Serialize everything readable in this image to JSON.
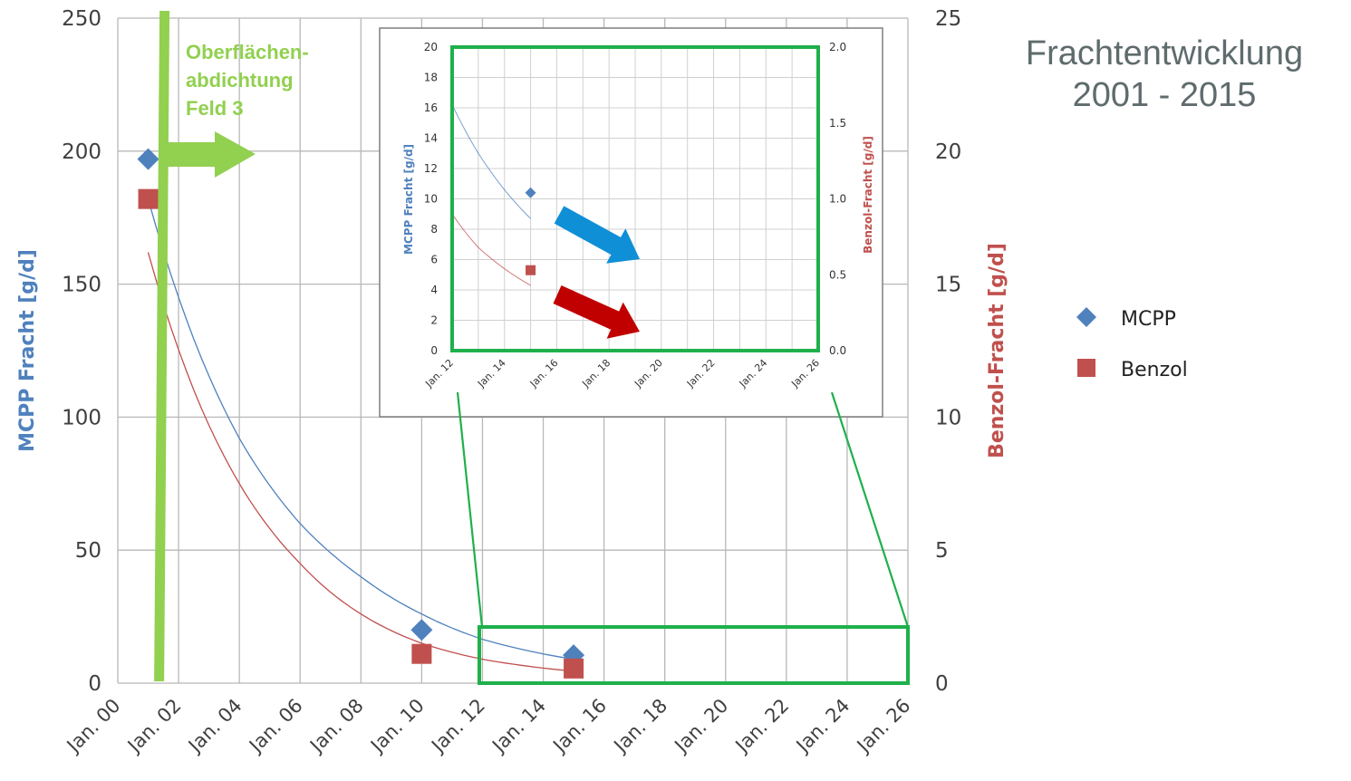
{
  "title": {
    "line1": "Frachtentwicklung",
    "line2": "2001 - 2015"
  },
  "annotation": {
    "line1": "Oberflächen-",
    "line2": "abdichtung",
    "line3": "Feld 3"
  },
  "colors": {
    "mcpp": "#4f81bd",
    "benzol": "#c0504d",
    "highlight": "#1fb04b",
    "annotation": "#92d050",
    "arrow_blue": "#0f8fd6",
    "arrow_red": "#c00000",
    "grid": "#b8b8b8",
    "axis_text": "#404040"
  },
  "chart_data": [
    {
      "type": "scatter",
      "xlabel": "",
      "ylabel": "MCPP Fracht [g/d]",
      "y2label": "Benzol-Fracht [g/d]",
      "x_ticks": [
        "Jan. 00",
        "Jan. 02",
        "Jan. 04",
        "Jan. 06",
        "Jan. 08",
        "Jan. 10",
        "Jan. 12",
        "Jan. 14",
        "Jan. 16",
        "Jan. 18",
        "Jan. 20",
        "Jan. 22",
        "Jan. 24",
        "Jan. 26"
      ],
      "xlim": [
        2000,
        2026
      ],
      "ylim": [
        0,
        250
      ],
      "y_ticks": [
        "0",
        "50",
        "100",
        "150",
        "200",
        "250"
      ],
      "y2lim": [
        0,
        25
      ],
      "y2_ticks": [
        "0",
        "5",
        "10",
        "15",
        "20",
        "25"
      ],
      "legend_position": "right",
      "grid": true,
      "series": [
        {
          "name": "MCPP",
          "axis": "left",
          "marker": "diamond",
          "points": [
            [
              2001.0,
              197
            ],
            [
              2010.0,
              20
            ],
            [
              2015.0,
              10.5
            ]
          ]
        },
        {
          "name": "Benzol",
          "axis": "right",
          "marker": "square",
          "points": [
            [
              2001.0,
              18.2
            ],
            [
              2010.0,
              1.1
            ],
            [
              2015.0,
              0.55
            ]
          ]
        }
      ],
      "trendlines": [
        {
          "series": "MCPP",
          "type": "exponential",
          "axis": "left",
          "from": 2001,
          "to": 2015,
          "points": [
            [
              2001,
              182
            ],
            [
              2004,
              92
            ],
            [
              2006,
              60
            ],
            [
              2008,
              40
            ],
            [
              2010,
              26
            ],
            [
              2012,
              16.5
            ],
            [
              2015,
              9
            ]
          ]
        },
        {
          "series": "Benzol",
          "axis": "right",
          "type": "exponential",
          "from": 2001,
          "to": 2015,
          "points": [
            [
              2001,
              16.2
            ],
            [
              2004,
              7.5
            ],
            [
              2006,
              4.5
            ],
            [
              2008,
              2.6
            ],
            [
              2010,
              1.5
            ],
            [
              2012,
              0.9
            ],
            [
              2015,
              0.45
            ]
          ]
        }
      ],
      "annotation_event_x": 2001.3,
      "highlight_region": {
        "xlim": [
          2012,
          2026
        ],
        "ylim": [
          0,
          21
        ]
      }
    },
    {
      "type": "scatter",
      "inset": true,
      "xlabel": "",
      "ylabel": "MCPP Fracht [g/d]",
      "y2label": "Benzol-Fracht [g/d]",
      "x_ticks": [
        "Jan. 12",
        "Jan. 14",
        "Jan. 16",
        "Jan. 18",
        "Jan. 20",
        "Jan. 22",
        "Jan. 24",
        "Jan. 26"
      ],
      "xlim": [
        2012,
        2026
      ],
      "ylim": [
        0,
        20
      ],
      "y_ticks": [
        "0",
        "2",
        "4",
        "6",
        "8",
        "10",
        "12",
        "14",
        "16",
        "18",
        "20"
      ],
      "y2lim": [
        0,
        2.0
      ],
      "y2_ticks": [
        "0.0",
        "0.5",
        "1.0",
        "1.5",
        "2.0"
      ],
      "grid": true,
      "series": [
        {
          "name": "MCPP",
          "axis": "left",
          "marker": "diamond",
          "points": [
            [
              2015.0,
              10.4
            ]
          ]
        },
        {
          "name": "Benzol",
          "axis": "right",
          "marker": "square",
          "points": [
            [
              2015.0,
              0.53
            ]
          ]
        }
      ],
      "trendlines": [
        {
          "series": "MCPP",
          "axis": "left",
          "type": "exponential",
          "points": [
            [
              2012,
              16.2
            ],
            [
              2013,
              13.0
            ],
            [
              2014,
              10.6
            ],
            [
              2015,
              8.7
            ]
          ]
        },
        {
          "series": "Benzol",
          "axis": "right",
          "type": "exponential",
          "points": [
            [
              2012,
              0.9
            ],
            [
              2013,
              0.68
            ],
            [
              2014,
              0.54
            ],
            [
              2015,
              0.43
            ]
          ]
        }
      ]
    }
  ]
}
